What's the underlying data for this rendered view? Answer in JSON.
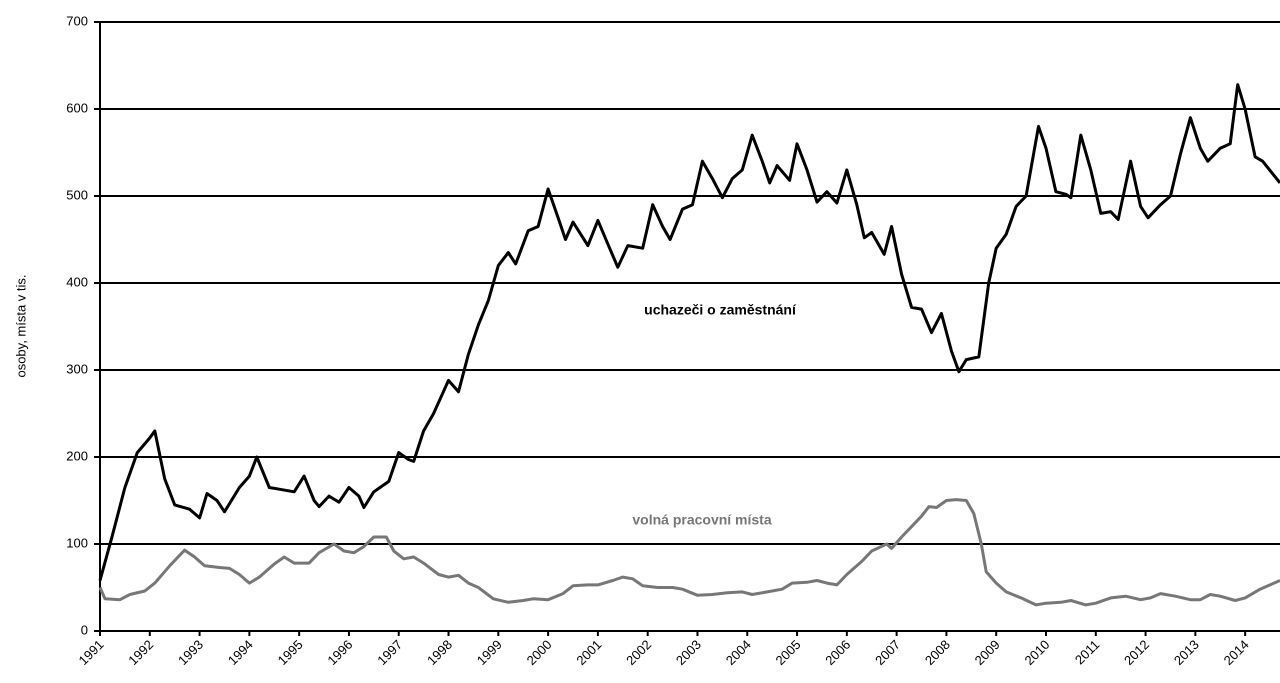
{
  "chart_data": {
    "type": "line",
    "y_label": "osoby, místa v tis.",
    "xlim": [
      1991,
      2014.7
    ],
    "xticks": [
      1991,
      1992,
      1993,
      1994,
      1995,
      1996,
      1997,
      1998,
      1999,
      2000,
      2001,
      2002,
      2003,
      2004,
      2005,
      2006,
      2007,
      2008,
      2009,
      2010,
      2011,
      2012,
      2013,
      2014
    ],
    "ylim": [
      0,
      700
    ],
    "yticks": [
      0,
      100,
      200,
      300,
      400,
      500,
      600,
      700
    ],
    "grid": true,
    "series": [
      {
        "name": "uchazeči o zaměstnání",
        "color": "#000000",
        "x": [
          1991.0,
          1991.25,
          1991.5,
          1991.75,
          1992.0,
          1992.1,
          1992.3,
          1992.5,
          1992.8,
          1993.0,
          1993.15,
          1993.35,
          1993.5,
          1993.8,
          1994.0,
          1994.15,
          1994.4,
          1994.6,
          1994.9,
          1995.1,
          1995.3,
          1995.4,
          1995.6,
          1995.8,
          1996.0,
          1996.2,
          1996.3,
          1996.5,
          1996.8,
          1997.0,
          1997.2,
          1997.3,
          1997.5,
          1997.7,
          1998.0,
          1998.2,
          1998.4,
          1998.6,
          1998.8,
          1999.0,
          1999.2,
          1999.35,
          1999.6,
          1999.8,
          2000.0,
          2000.2,
          2000.35,
          2000.5,
          2000.8,
          2001.0,
          2001.2,
          2001.4,
          2001.6,
          2001.9,
          2002.1,
          2002.3,
          2002.45,
          2002.7,
          2002.9,
          2003.1,
          2003.3,
          2003.5,
          2003.7,
          2003.9,
          2004.1,
          2004.3,
          2004.45,
          2004.6,
          2004.85,
          2005.0,
          2005.2,
          2005.4,
          2005.6,
          2005.8,
          2006.0,
          2006.2,
          2006.35,
          2006.5,
          2006.75,
          2006.9,
          2007.1,
          2007.3,
          2007.5,
          2007.7,
          2007.9,
          2008.1,
          2008.25,
          2008.4,
          2008.65,
          2008.85,
          2009.0,
          2009.2,
          2009.4,
          2009.6,
          2009.85,
          2010.0,
          2010.2,
          2010.4,
          2010.5,
          2010.7,
          2010.9,
          2011.1,
          2011.3,
          2011.45,
          2011.7,
          2011.9,
          2012.05,
          2012.3,
          2012.5,
          2012.7,
          2012.9,
          2013.1,
          2013.25,
          2013.5,
          2013.7,
          2013.85,
          2014.0,
          2014.2,
          2014.35,
          2014.7
        ],
        "values": [
          58,
          110,
          165,
          205,
          222,
          230,
          175,
          145,
          140,
          130,
          158,
          150,
          137,
          165,
          178,
          200,
          165,
          163,
          160,
          178,
          150,
          143,
          155,
          148,
          165,
          155,
          142,
          160,
          172,
          205,
          197,
          195,
          230,
          250,
          288,
          275,
          318,
          352,
          380,
          420,
          435,
          422,
          460,
          465,
          508,
          475,
          450,
          470,
          443,
          472,
          445,
          418,
          443,
          440,
          490,
          465,
          450,
          485,
          490,
          540,
          520,
          498,
          520,
          530,
          570,
          540,
          515,
          535,
          518,
          560,
          530,
          493,
          505,
          492,
          530,
          490,
          452,
          458,
          433,
          465,
          410,
          372,
          370,
          343,
          365,
          322,
          298,
          312,
          315,
          400,
          440,
          456,
          488,
          500,
          580,
          555,
          505,
          502,
          498,
          570,
          530,
          480,
          482,
          473,
          540,
          488,
          475,
          490,
          500,
          548,
          590,
          555,
          540,
          555,
          560,
          628,
          600,
          545,
          540,
          515
        ]
      },
      {
        "name": "volná pracovní místa",
        "color": "#777777",
        "x": [
          1991.0,
          1991.1,
          1991.4,
          1991.6,
          1991.9,
          1992.1,
          1992.4,
          1992.7,
          1992.9,
          1993.1,
          1993.4,
          1993.6,
          1993.8,
          1994.0,
          1994.2,
          1994.5,
          1994.7,
          1994.9,
          1995.2,
          1995.4,
          1995.7,
          1995.9,
          1996.1,
          1996.3,
          1996.5,
          1996.75,
          1996.9,
          1997.1,
          1997.3,
          1997.5,
          1997.8,
          1998.0,
          1998.2,
          1998.4,
          1998.6,
          1998.9,
          1999.2,
          1999.5,
          1999.7,
          2000.0,
          2000.3,
          2000.5,
          2000.8,
          2001.0,
          2001.3,
          2001.5,
          2001.7,
          2001.9,
          2002.2,
          2002.5,
          2002.7,
          2003.0,
          2003.3,
          2003.6,
          2003.9,
          2004.1,
          2004.4,
          2004.7,
          2004.9,
          2005.2,
          2005.4,
          2005.6,
          2005.8,
          2006.0,
          2006.3,
          2006.5,
          2006.8,
          2006.9,
          2007.1,
          2007.3,
          2007.5,
          2007.65,
          2007.8,
          2008.0,
          2008.2,
          2008.4,
          2008.55,
          2008.7,
          2008.8,
          2009.0,
          2009.2,
          2009.5,
          2009.8,
          2010.0,
          2010.3,
          2010.5,
          2010.8,
          2011.0,
          2011.3,
          2011.6,
          2011.9,
          2012.1,
          2012.3,
          2012.6,
          2012.9,
          2013.1,
          2013.3,
          2013.5,
          2013.8,
          2014.0,
          2014.3,
          2014.5,
          2014.7
        ],
        "values": [
          50,
          37,
          36,
          42,
          46,
          55,
          75,
          93,
          85,
          75,
          73,
          72,
          65,
          55,
          62,
          77,
          85,
          78,
          78,
          90,
          100,
          92,
          90,
          97,
          108,
          108,
          92,
          83,
          85,
          78,
          65,
          62,
          64,
          55,
          50,
          37,
          33,
          35,
          37,
          36,
          43,
          52,
          53,
          53,
          58,
          62,
          60,
          52,
          50,
          50,
          48,
          41,
          42,
          44,
          45,
          42,
          45,
          48,
          55,
          56,
          58,
          55,
          53,
          65,
          80,
          92,
          100,
          95,
          108,
          120,
          132,
          143,
          142,
          150,
          151,
          150,
          135,
          100,
          68,
          55,
          45,
          38,
          30,
          32,
          33,
          35,
          30,
          32,
          38,
          40,
          36,
          38,
          43,
          40,
          36,
          36,
          42,
          40,
          35,
          38,
          48,
          53,
          58
        ]
      }
    ]
  }
}
